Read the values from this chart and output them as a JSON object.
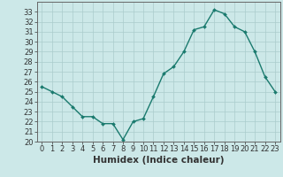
{
  "x": [
    0,
    1,
    2,
    3,
    4,
    5,
    6,
    7,
    8,
    9,
    10,
    11,
    12,
    13,
    14,
    15,
    16,
    17,
    18,
    19,
    20,
    21,
    22,
    23
  ],
  "y": [
    25.5,
    25.0,
    24.5,
    23.5,
    22.5,
    22.5,
    21.8,
    21.8,
    20.2,
    22.0,
    22.3,
    24.5,
    26.8,
    27.5,
    29.0,
    31.2,
    31.5,
    33.2,
    32.8,
    31.5,
    31.0,
    29.0,
    26.5,
    25.0
  ],
  "line_color": "#1a7a6e",
  "marker": "D",
  "marker_size": 2.0,
  "bg_color": "#cce8e8",
  "grid_color": "#aacccc",
  "xlabel": "Humidex (Indice chaleur)",
  "xlim": [
    -0.5,
    23.5
  ],
  "ylim": [
    20,
    34
  ],
  "yticks": [
    20,
    21,
    22,
    23,
    24,
    25,
    26,
    27,
    28,
    29,
    30,
    31,
    32,
    33
  ],
  "xticks": [
    0,
    1,
    2,
    3,
    4,
    5,
    6,
    7,
    8,
    9,
    10,
    11,
    12,
    13,
    14,
    15,
    16,
    17,
    18,
    19,
    20,
    21,
    22,
    23
  ],
  "tick_fontsize": 6.0,
  "xlabel_fontsize": 7.5,
  "axis_color": "#333333",
  "spine_color": "#666666",
  "linewidth": 1.0
}
